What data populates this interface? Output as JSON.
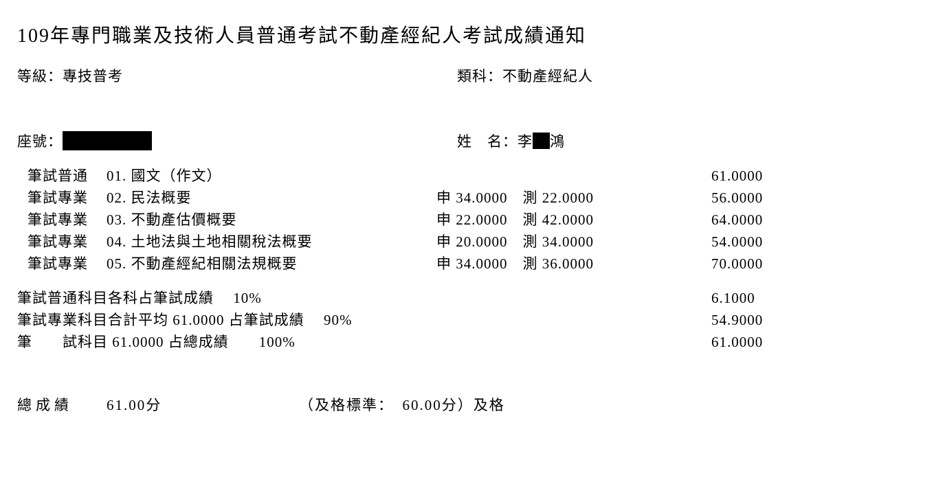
{
  "title": "109年專門職業及技術人員普通考試不動產經紀人考試成績通知",
  "level": {
    "label": "等級：",
    "value": "專技普考"
  },
  "category": {
    "label": "類科：",
    "value": "不動產經紀人"
  },
  "seat": {
    "label": "座號："
  },
  "name": {
    "label": "姓　名：",
    "surname": "李",
    "given_part": "鴻"
  },
  "subjects": [
    {
      "cat": "筆試普通",
      "code": "01.",
      "name": "國文（作文）",
      "detail": "",
      "score": "61.0000"
    },
    {
      "cat": "筆試專業",
      "code": "02.",
      "name": "民法概要",
      "detail": "申 34.0000　測 22.0000",
      "score": "56.0000"
    },
    {
      "cat": "筆試專業",
      "code": "03.",
      "name": "不動產估價概要",
      "detail": "申 22.0000　測 42.0000",
      "score": "64.0000"
    },
    {
      "cat": "筆試專業",
      "code": "04.",
      "name": "土地法與土地相關稅法概要",
      "detail": "申 20.0000　測 34.0000",
      "score": "54.0000"
    },
    {
      "cat": "筆試專業",
      "code": "05.",
      "name": "不動產經紀相關法規概要",
      "detail": "申 34.0000　測 36.0000",
      "score": "70.0000"
    }
  ],
  "summary": [
    {
      "text": "筆試普通科目各科占筆試成績　 10%",
      "score": "6.1000"
    },
    {
      "text": "筆試專業科目合計平均 61.0000 占筆試成績　 90%",
      "score": "54.9000"
    },
    {
      "text": "筆　　試科目 61.0000 占總成績　　100%",
      "score": "61.0000"
    }
  ],
  "total": {
    "label": "總成績",
    "score": "61.00分",
    "pass_line": "（及格標準：　60.00分）及格"
  },
  "colors": {
    "background": "#ffffff",
    "text": "#000000",
    "redact": "#000000"
  },
  "fonts": {
    "title_size": 28,
    "body_size": 21,
    "family": "PMingLiU/SimSun serif"
  }
}
